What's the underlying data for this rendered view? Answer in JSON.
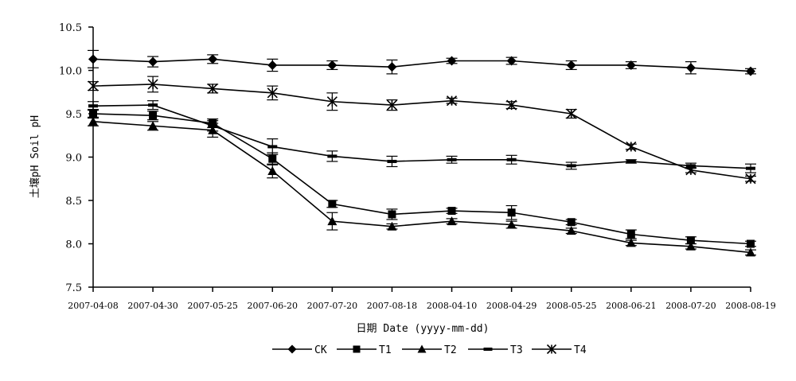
{
  "chart_data": {
    "type": "line",
    "title": "",
    "xlabel": "日期 Date (yyyy-mm-dd)",
    "ylabel": "土壤pH Soil pH",
    "ylim": [
      7.5,
      10.5
    ],
    "yticks": [
      "7.5",
      "8.0",
      "8.5",
      "9.0",
      "9.5",
      "10.0",
      "10.5"
    ],
    "categories": [
      "2007-04-08",
      "2007-04-30",
      "2007-05-25",
      "2007-06-20",
      "2007-07-20",
      "2007-08-18",
      "2008-04-10",
      "2008-04-29",
      "2008-05-25",
      "2008-06-21",
      "2008-07-20",
      "2008-08-19"
    ],
    "grid": false,
    "legend_position": "bottom",
    "series": [
      {
        "name": "CK",
        "marker": "diamond",
        "values": [
          10.13,
          10.1,
          10.13,
          10.06,
          10.06,
          10.04,
          10.11,
          10.11,
          10.06,
          10.06,
          10.03,
          9.99
        ],
        "errors": [
          0.1,
          0.06,
          0.05,
          0.07,
          0.05,
          0.08,
          0.03,
          0.04,
          0.05,
          0.04,
          0.07,
          0.03
        ]
      },
      {
        "name": "T1",
        "marker": "square",
        "values": [
          9.5,
          9.48,
          9.39,
          8.98,
          8.46,
          8.34,
          8.38,
          8.36,
          8.25,
          8.11,
          8.04,
          8.0
        ],
        "errors": [
          0.05,
          0.05,
          0.05,
          0.07,
          0.04,
          0.06,
          0.03,
          0.08,
          0.03,
          0.05,
          0.04,
          0.03
        ]
      },
      {
        "name": "T2",
        "marker": "triangle",
        "values": [
          9.41,
          9.36,
          9.31,
          8.84,
          8.26,
          8.2,
          8.26,
          8.22,
          8.15,
          8.01,
          7.97,
          7.9
        ],
        "errors": [
          0.05,
          0.05,
          0.08,
          0.08,
          0.1,
          0.03,
          0.03,
          0.04,
          0.03,
          0.03,
          0.03,
          0.03
        ]
      },
      {
        "name": "T3",
        "marker": "dash",
        "values": [
          9.59,
          9.6,
          9.36,
          9.12,
          9.01,
          8.95,
          8.97,
          8.97,
          8.9,
          8.95,
          8.9,
          8.87
        ],
        "errors": [
          0.05,
          0.05,
          0.06,
          0.09,
          0.06,
          0.06,
          0.04,
          0.05,
          0.04,
          0.02,
          0.03,
          0.05
        ]
      },
      {
        "name": "T4",
        "marker": "star",
        "values": [
          9.82,
          9.84,
          9.79,
          9.74,
          9.64,
          9.6,
          9.65,
          9.6,
          9.5,
          9.12,
          8.85,
          8.75
        ],
        "errors": [
          0.05,
          0.09,
          0.05,
          0.08,
          0.1,
          0.06,
          0.03,
          0.04,
          0.05,
          0.03,
          0.03,
          0.03
        ]
      }
    ]
  }
}
